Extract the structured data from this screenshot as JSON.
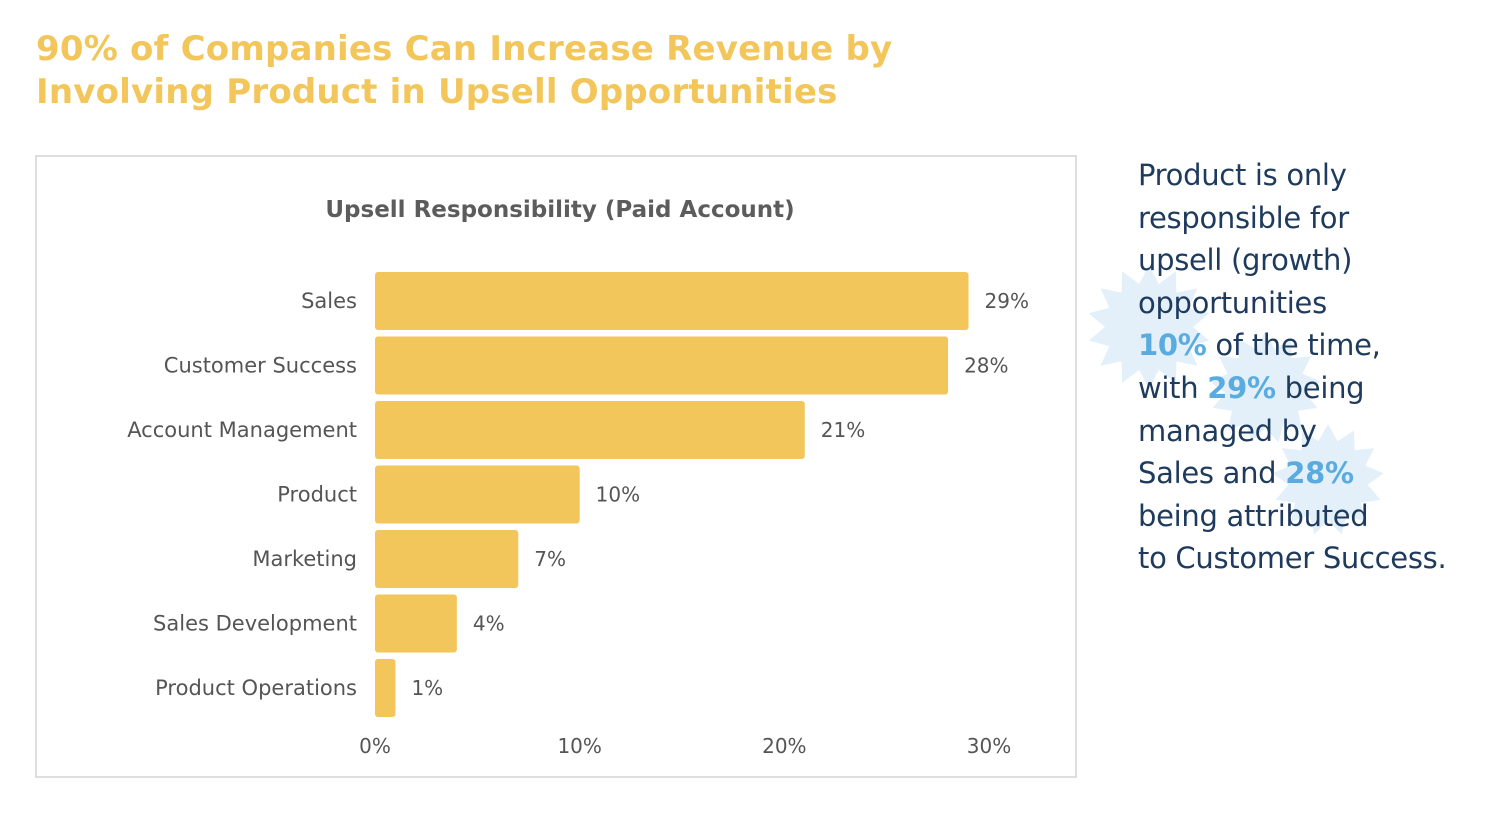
{
  "headline": "90% of Companies Can Increase Revenue by Involving Product in Upsell Opportunities",
  "colors": {
    "headline": "#f2c65a",
    "bar": "#f2c65a",
    "side_text": "#1e3a5c",
    "highlight": "#5aace0",
    "burst": "#e3f0fa"
  },
  "chart_data": {
    "type": "bar",
    "orientation": "horizontal",
    "title": "Upsell Responsibility (Paid Account)",
    "categories": [
      "Sales",
      "Customer Success",
      "Account Management",
      "Product",
      "Marketing",
      "Sales Development",
      "Product Operations"
    ],
    "values": [
      29,
      28,
      21,
      10,
      7,
      4,
      1
    ],
    "value_labels": [
      "29%",
      "28%",
      "21%",
      "10%",
      "7%",
      "4%",
      "1%"
    ],
    "xlim": [
      0,
      30
    ],
    "x_ticks": [
      0,
      10,
      20,
      30
    ],
    "x_tick_labels": [
      "0%",
      "10%",
      "20%",
      "30%"
    ],
    "xlabel": "",
    "ylabel": "",
    "grid": false,
    "legend": "none"
  },
  "side_text": {
    "l1": "Product is only",
    "l2": "responsible for",
    "l3": "upsell (growth)",
    "l4": "opportunities",
    "l5_hl": "10%",
    "l5_rest": " of the time,",
    "l6_pre": "with ",
    "l6_hl": "29%",
    "l6_rest": " being",
    "l7": "managed by",
    "l8_pre": "Sales and ",
    "l8_hl": "28%",
    "l9": "being attributed",
    "l10": "to Customer Success."
  }
}
